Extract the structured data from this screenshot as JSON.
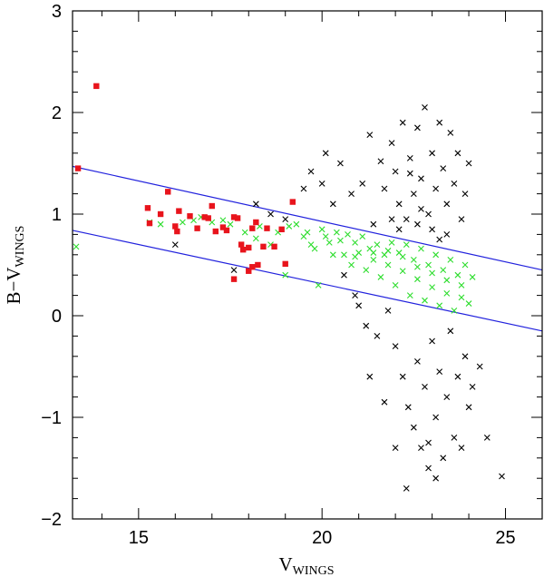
{
  "chart_data": {
    "type": "scatter",
    "xlabel": {
      "main": "V",
      "sub": "WINGS"
    },
    "ylabel": {
      "main": "B−V",
      "sub": "WINGS"
    },
    "xlim": [
      13.2,
      26.0
    ],
    "ylim": [
      -2.0,
      3.0
    ],
    "xticks": [
      15,
      20,
      25
    ],
    "yticks": [
      -2,
      -1,
      0,
      1,
      2,
      3
    ],
    "grid": false,
    "colors": {
      "red_squares": "#e8141c",
      "green_crosses": "#2ddd2d",
      "black_crosses": "#000000",
      "lines": "#2222dd"
    },
    "lines": [
      {
        "x": [
          13.2,
          26.0
        ],
        "y": [
          1.47,
          0.45
        ]
      },
      {
        "x": [
          13.2,
          26.0
        ],
        "y": [
          0.84,
          -0.15
        ]
      }
    ],
    "series": [
      {
        "marker": "square",
        "points": [
          [
            13.85,
            2.26
          ],
          [
            13.35,
            1.45
          ],
          [
            15.25,
            1.06
          ],
          [
            15.3,
            0.91
          ],
          [
            15.6,
            1.0
          ],
          [
            15.8,
            1.22
          ],
          [
            16.0,
            0.88
          ],
          [
            16.1,
            1.03
          ],
          [
            16.05,
            0.83
          ],
          [
            16.4,
            0.98
          ],
          [
            16.6,
            0.86
          ],
          [
            16.8,
            0.97
          ],
          [
            16.9,
            0.96
          ],
          [
            17.0,
            1.08
          ],
          [
            17.1,
            0.83
          ],
          [
            17.3,
            0.87
          ],
          [
            17.4,
            0.84
          ],
          [
            17.6,
            0.97
          ],
          [
            17.7,
            0.96
          ],
          [
            17.8,
            0.7
          ],
          [
            17.85,
            0.65
          ],
          [
            18.0,
            0.67
          ],
          [
            18.1,
            0.86
          ],
          [
            18.2,
            0.92
          ],
          [
            18.25,
            0.5
          ],
          [
            18.1,
            0.48
          ],
          [
            18.0,
            0.44
          ],
          [
            17.6,
            0.36
          ],
          [
            18.4,
            0.68
          ],
          [
            18.5,
            0.86
          ],
          [
            18.7,
            0.68
          ],
          [
            18.9,
            0.85
          ],
          [
            19.0,
            0.51
          ],
          [
            19.2,
            1.12
          ]
        ]
      },
      {
        "marker": "cross",
        "points": [
          [
            13.3,
            0.68
          ],
          [
            15.3,
            0.92
          ],
          [
            15.6,
            0.9
          ],
          [
            16.2,
            0.92
          ],
          [
            16.5,
            0.94
          ],
          [
            16.7,
            0.97
          ],
          [
            17.0,
            0.92
          ],
          [
            17.3,
            0.94
          ],
          [
            17.5,
            0.9
          ],
          [
            17.9,
            0.82
          ],
          [
            18.2,
            0.76
          ],
          [
            18.3,
            0.88
          ],
          [
            18.6,
            0.7
          ],
          [
            18.8,
            0.82
          ],
          [
            19.0,
            0.4
          ],
          [
            19.1,
            0.88
          ],
          [
            19.3,
            0.9
          ],
          [
            19.5,
            0.78
          ],
          [
            19.6,
            0.82
          ],
          [
            19.7,
            0.7
          ],
          [
            19.8,
            0.66
          ],
          [
            19.9,
            0.3
          ],
          [
            20.0,
            0.85
          ],
          [
            20.1,
            0.78
          ],
          [
            20.2,
            0.72
          ],
          [
            20.3,
            0.6
          ],
          [
            20.4,
            0.82
          ],
          [
            20.5,
            0.74
          ],
          [
            20.6,
            0.6
          ],
          [
            20.7,
            0.8
          ],
          [
            20.8,
            0.5
          ],
          [
            20.9,
            0.72
          ],
          [
            21.0,
            0.62
          ],
          [
            21.1,
            0.78
          ],
          [
            21.2,
            0.45
          ],
          [
            21.3,
            0.66
          ],
          [
            21.4,
            0.55
          ],
          [
            21.5,
            0.7
          ],
          [
            21.6,
            0.38
          ],
          [
            21.7,
            0.6
          ],
          [
            21.8,
            0.5
          ],
          [
            21.9,
            0.72
          ],
          [
            22.0,
            0.3
          ],
          [
            22.1,
            0.62
          ],
          [
            22.2,
            0.44
          ],
          [
            22.3,
            0.7
          ],
          [
            22.4,
            0.2
          ],
          [
            22.5,
            0.55
          ],
          [
            22.6,
            0.36
          ],
          [
            22.7,
            0.66
          ],
          [
            22.8,
            0.15
          ],
          [
            22.9,
            0.5
          ],
          [
            23.0,
            0.28
          ],
          [
            23.1,
            0.6
          ],
          [
            23.2,
            0.1
          ],
          [
            23.3,
            0.45
          ],
          [
            23.4,
            0.22
          ],
          [
            23.5,
            0.55
          ],
          [
            23.6,
            0.05
          ],
          [
            23.7,
            0.4
          ],
          [
            23.8,
            0.3
          ],
          [
            23.9,
            0.5
          ],
          [
            24.0,
            0.12
          ],
          [
            24.1,
            0.38
          ],
          [
            22.2,
            0.58
          ],
          [
            22.6,
            0.48
          ],
          [
            23.0,
            0.42
          ],
          [
            23.4,
            0.35
          ],
          [
            21.8,
            0.64
          ],
          [
            21.4,
            0.62
          ],
          [
            20.9,
            0.58
          ],
          [
            23.8,
            0.18
          ]
        ]
      },
      {
        "marker": "cross",
        "points": [
          [
            16.0,
            0.7
          ],
          [
            17.6,
            0.45
          ],
          [
            18.2,
            1.1
          ],
          [
            18.6,
            1.0
          ],
          [
            19.0,
            0.95
          ],
          [
            19.5,
            1.25
          ],
          [
            19.7,
            1.42
          ],
          [
            20.0,
            1.3
          ],
          [
            20.1,
            1.6
          ],
          [
            20.3,
            1.1
          ],
          [
            20.5,
            1.5
          ],
          [
            20.6,
            0.4
          ],
          [
            20.8,
            1.2
          ],
          [
            20.9,
            0.2
          ],
          [
            21.0,
            0.1
          ],
          [
            21.1,
            1.3
          ],
          [
            21.2,
            -0.1
          ],
          [
            21.3,
            1.78
          ],
          [
            21.4,
            0.9
          ],
          [
            21.5,
            -0.2
          ],
          [
            21.6,
            1.52
          ],
          [
            21.7,
            1.25
          ],
          [
            21.8,
            0.05
          ],
          [
            21.9,
            1.7
          ],
          [
            22.0,
            1.42
          ],
          [
            22.0,
            -0.3
          ],
          [
            22.1,
            1.1
          ],
          [
            22.2,
            -0.6
          ],
          [
            22.2,
            1.9
          ],
          [
            22.3,
            0.95
          ],
          [
            22.35,
            -0.9
          ],
          [
            22.4,
            1.55
          ],
          [
            22.5,
            1.2
          ],
          [
            22.5,
            -1.1
          ],
          [
            22.6,
            1.85
          ],
          [
            22.6,
            -0.45
          ],
          [
            22.7,
            1.35
          ],
          [
            22.7,
            -1.3
          ],
          [
            22.8,
            2.05
          ],
          [
            22.8,
            -0.7
          ],
          [
            22.9,
            1.0
          ],
          [
            22.9,
            -1.5
          ],
          [
            23.0,
            1.6
          ],
          [
            23.0,
            -0.25
          ],
          [
            23.1,
            1.25
          ],
          [
            23.1,
            -1.0
          ],
          [
            23.2,
            1.9
          ],
          [
            23.2,
            -0.55
          ],
          [
            23.3,
            1.45
          ],
          [
            23.3,
            -1.4
          ],
          [
            23.4,
            1.1
          ],
          [
            23.4,
            -0.8
          ],
          [
            23.5,
            1.8
          ],
          [
            23.5,
            -0.15
          ],
          [
            23.6,
            1.3
          ],
          [
            23.6,
            -1.2
          ],
          [
            23.7,
            1.6
          ],
          [
            23.7,
            -0.6
          ],
          [
            23.8,
            0.95
          ],
          [
            23.8,
            -1.3
          ],
          [
            23.9,
            1.2
          ],
          [
            23.9,
            -0.4
          ],
          [
            24.0,
            1.5
          ],
          [
            24.0,
            -0.9
          ],
          [
            24.1,
            -0.7
          ],
          [
            24.3,
            -0.5
          ],
          [
            24.5,
            -1.2
          ],
          [
            24.9,
            -1.58
          ],
          [
            22.3,
            -1.7
          ],
          [
            23.1,
            -1.6
          ],
          [
            22.9,
            -1.25
          ],
          [
            22.0,
            -1.3
          ],
          [
            21.7,
            -0.85
          ],
          [
            21.3,
            -0.6
          ],
          [
            22.4,
            1.4
          ],
          [
            22.7,
            1.05
          ],
          [
            23.0,
            0.85
          ],
          [
            22.1,
            0.85
          ],
          [
            21.9,
            0.95
          ],
          [
            23.4,
            0.8
          ],
          [
            22.6,
            0.9
          ],
          [
            23.2,
            0.75
          ]
        ]
      }
    ]
  }
}
